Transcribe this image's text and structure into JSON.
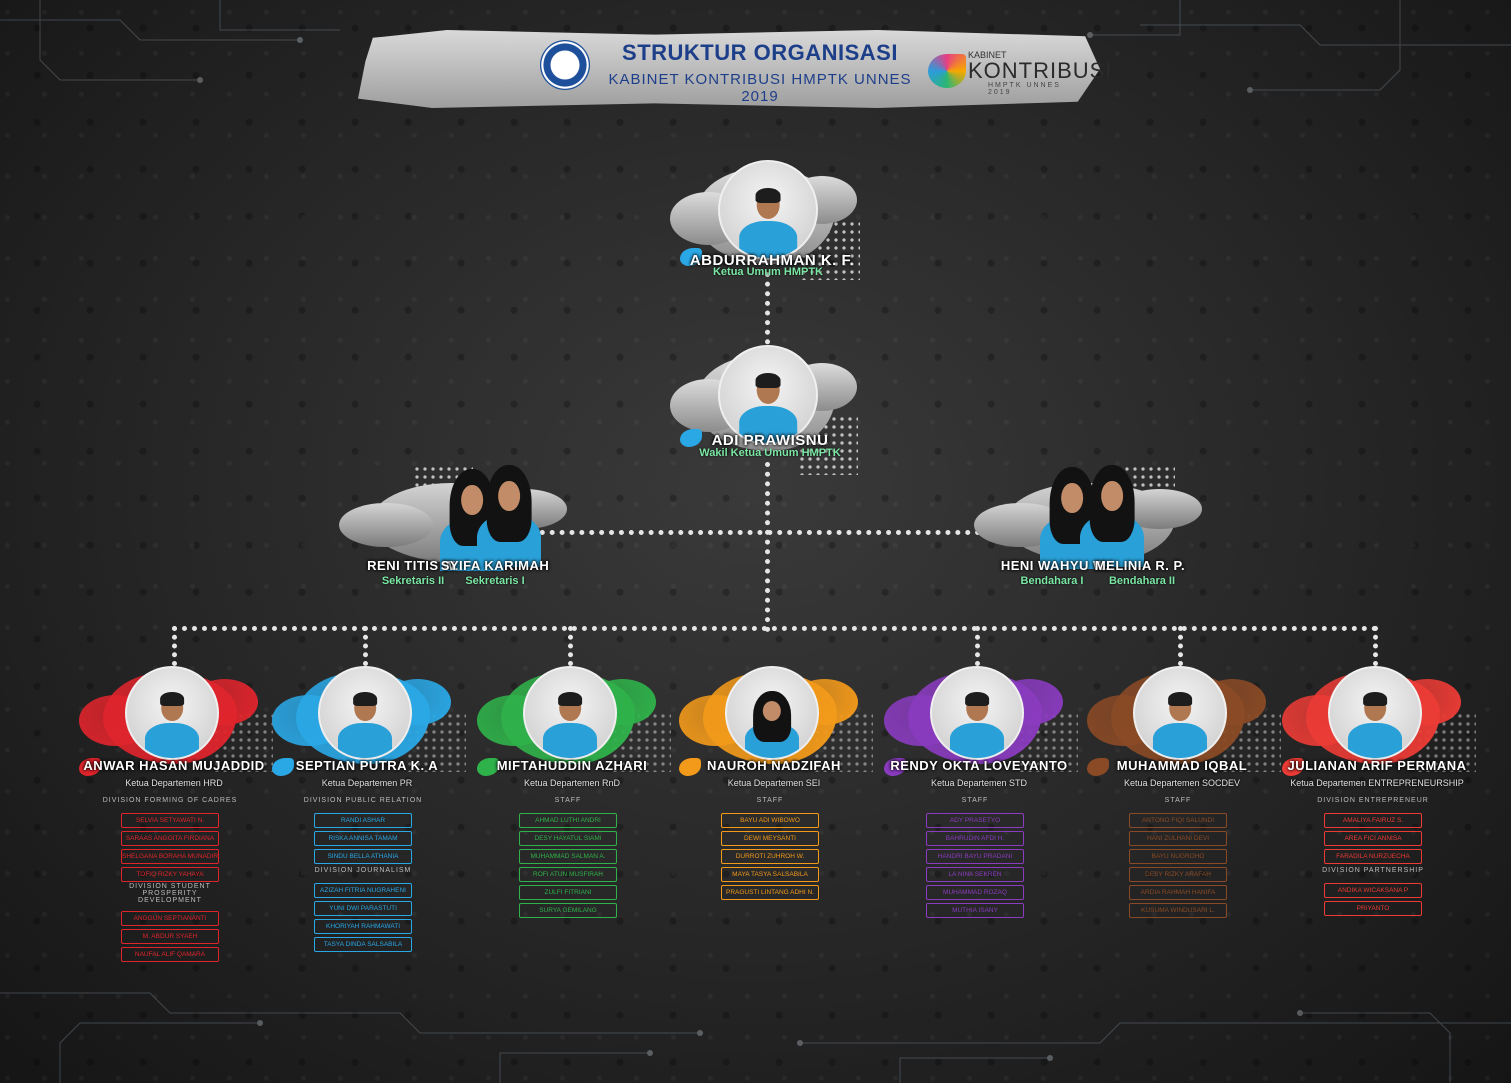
{
  "header": {
    "title": "STRUKTUR ORGANISASI",
    "subtitle": "KABINET KONTRIBUSI HMPTK UNNES 2019",
    "brand_small": "KABINET",
    "brand_big": "KONTRIBUSI",
    "brand_foot": "HMPTK UNNES 2019"
  },
  "colors": {
    "red": "#e0242c",
    "blue": "#2aa8e6",
    "green": "#2fb24a",
    "orange": "#f39a1a",
    "purple": "#8a3bbf",
    "brown": "#8a4a25",
    "coral": "#ec3b35",
    "gray": "#9a9a9a"
  },
  "leaders": {
    "ketua": {
      "name": "ABDURRAHMAN K. F.",
      "role": "Ketua Umum HMPTK"
    },
    "wakil": {
      "name": "ADI PRAWISNU",
      "role": "Wakil Ketua Umum HMPTK"
    },
    "sekretaris": [
      {
        "name": "RENI TITIS W.",
        "role": "Sekretaris II"
      },
      {
        "name": "SYIFA KARIMAH",
        "role": "Sekretaris I"
      }
    ],
    "bendahara": [
      {
        "name": "HENI WAHYU W.",
        "role": "Bendahara I"
      },
      {
        "name": "MELINIA R. P.",
        "role": "Bendahara II"
      }
    ]
  },
  "departments": [
    {
      "name": "ANWAR HASAN MUJADDID",
      "role": "Ketua Departemen HRD",
      "sections": [
        {
          "title": "DIVISION FORMING OF CADRES",
          "members": [
            "SELVIA SETYAWATI N.",
            "SARAAS ANGGITA FIRDIANA",
            "SHELGANA BORAHA MUNADIR",
            "TOFIQ RIZKY YAHAYA"
          ]
        },
        {
          "title": "DIVISION STUDENT PROSPERITY DEVELOPMENT",
          "members": [
            "ANGGUN SEPTIANANTI",
            "M. ABDUR SYAEH",
            "NAUFAL ALIF QAMARA"
          ]
        }
      ]
    },
    {
      "name": "SEPTIAN PUTRA K. A",
      "role": "Ketua Departemen PR",
      "sections": [
        {
          "title": "DIVISION PUBLIC RELATION",
          "members": [
            "RANDI ASHAR",
            "RISKA ANNISA TAMAM",
            "SINDU BELLA ATHANIA"
          ]
        },
        {
          "title": "DIVISION JOURNALISM",
          "members": [
            "AZIZAH FITRIA NUGRAHENI",
            "YUNI DWI PARASTUTI",
            "KHORIYAH RAHMAWATI",
            "TASYA DINDA SALSABILA"
          ]
        }
      ]
    },
    {
      "name": "MIFTAHUDDIN AZHARI",
      "role": "Ketua Departemen RnD",
      "sections": [
        {
          "title": "STAFF",
          "members": [
            "AHMAD LUTHI ANDRI",
            "DESY HAYATUL SIAMI",
            "MUHAMMAD SALMAN A.",
            "ROFI ATUN MUSFIRAH",
            "ZULFI FITRIANI",
            "SURYA GEMILANG"
          ]
        }
      ]
    },
    {
      "name": "NAUROH NADZIFAH",
      "role": "Ketua Departemen SEI",
      "sections": [
        {
          "title": "STAFF",
          "members": [
            "BAYU ADI WIBOWO",
            "DEWI MEYSANTI",
            "DURROTI ZUHROH W.",
            "MAYA TASYA SALSABILA",
            "PRAGUSTI LINTANG ADHI N."
          ]
        }
      ]
    },
    {
      "name": "RENDY OKTA LOVEYANTO",
      "role": "Ketua Departemen STD",
      "sections": [
        {
          "title": "STAFF",
          "members": [
            "ADY PRASETYO",
            "BAHRUDIN AFDI H.",
            "HANDRI BAYU PRADANI",
            "LA NINA SEKREN",
            "MUHAMMAD ROZAQ",
            "MUTHIA ISANY"
          ]
        }
      ]
    },
    {
      "name": "MUHAMMAD IQBAL",
      "role": "Ketua Departemen SOCDEV",
      "sections": [
        {
          "title": "STAFF",
          "members": [
            "ANTONO FIQI SALUNDI",
            "HANI ZULHANI DEVI",
            "BAYU NUGROHO",
            "DESY RIZKY ARAFAH",
            "ARDIA RAHMAH HANIFA",
            "KUSUMA WINDUSARI L."
          ]
        }
      ]
    },
    {
      "name": "JULIANAN ARIF PERMANA",
      "role": "Ketua Departemen ENTREPRENEURSHIP",
      "sections": [
        {
          "title": "DIVISION ENTREPRENEUR",
          "members": [
            "AMALIYA FAIRUZ S.",
            "AREA FICI ANNISA",
            "FARADILA NURZUECHA"
          ]
        },
        {
          "title": "DIVISION PARTNERSHIP",
          "members": [
            "ANDIKA WICAKSANA P",
            "PRIYANTO"
          ]
        }
      ]
    }
  ]
}
